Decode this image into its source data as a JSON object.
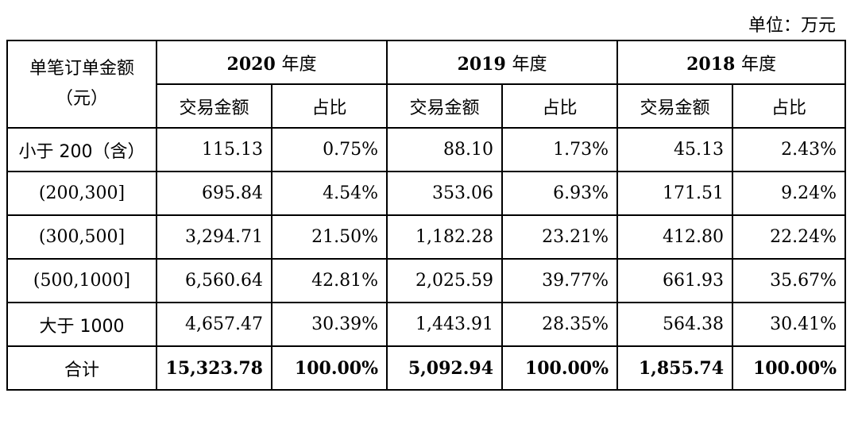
{
  "unit_label": "单位：万元",
  "header": {
    "corner": "单笔订单金额（元）",
    "corner_line1": "单笔订单金额",
    "corner_line2": "（元）",
    "years": [
      {
        "year": "2020",
        "suffix": "年度"
      },
      {
        "year": "2019",
        "suffix": "年度"
      },
      {
        "year": "2018",
        "suffix": "年度"
      }
    ],
    "sub": {
      "amount": "交易金额",
      "ratio": "占比"
    }
  },
  "rows": [
    {
      "label": "小于 200（含）",
      "v": [
        "115.13",
        "0.75%",
        "88.10",
        "1.73%",
        "45.13",
        "2.43%"
      ]
    },
    {
      "label": "(200,300]",
      "v": [
        "695.84",
        "4.54%",
        "353.06",
        "6.93%",
        "171.51",
        "9.24%"
      ]
    },
    {
      "label": "(300,500]",
      "v": [
        "3,294.71",
        "21.50%",
        "1,182.28",
        "23.21%",
        "412.80",
        "22.24%"
      ]
    },
    {
      "label": "(500,1000]",
      "v": [
        "6,560.64",
        "42.81%",
        "2,025.59",
        "39.77%",
        "661.93",
        "35.67%"
      ]
    },
    {
      "label": "大于 1000",
      "v": [
        "4,657.47",
        "30.39%",
        "1,443.91",
        "28.35%",
        "564.38",
        "30.41%"
      ]
    }
  ],
  "total": {
    "label": "合计",
    "v": [
      "15,323.78",
      "100.00%",
      "5,092.94",
      "100.00%",
      "1,855.74",
      "100.00%"
    ]
  }
}
